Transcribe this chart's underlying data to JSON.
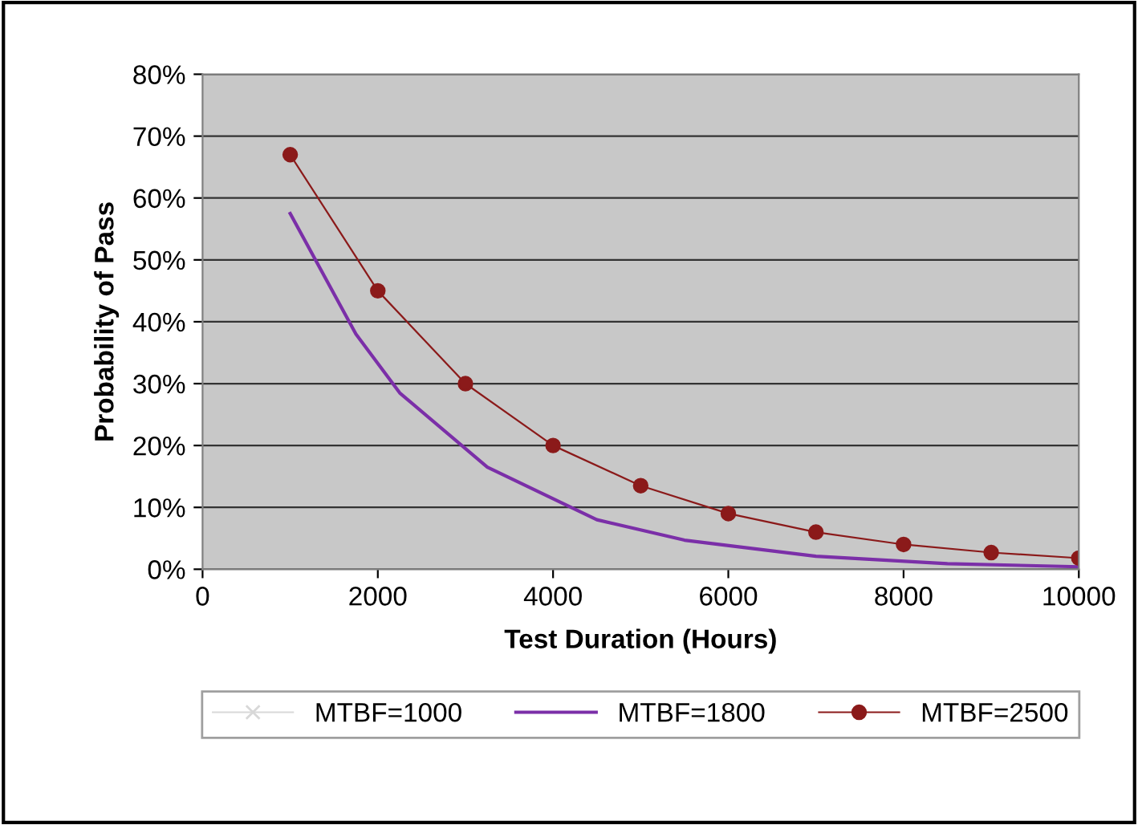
{
  "chart_data": {
    "type": "line",
    "xlabel": "Test Duration (Hours)",
    "ylabel": "Probability of Pass",
    "xlim": [
      0,
      10000
    ],
    "xticks": [
      0,
      2000,
      4000,
      6000,
      8000,
      10000
    ],
    "ylim": [
      0,
      0.8
    ],
    "yticks": [
      {
        "value": 0,
        "label": "0%"
      },
      {
        "value": 0.1,
        "label": "10%"
      },
      {
        "value": 0.2,
        "label": "20%"
      },
      {
        "value": 0.3,
        "label": "30%"
      },
      {
        "value": 0.4,
        "label": "40%"
      },
      {
        "value": 0.5,
        "label": "50%"
      },
      {
        "value": 0.6,
        "label": "60%"
      },
      {
        "value": 0.7,
        "label": "70%"
      },
      {
        "value": 0.8,
        "label": "80%"
      }
    ],
    "grid": "y",
    "legend": "bottom",
    "series": [
      {
        "name": "MTBF=1000",
        "color": "#d8d8d8",
        "marker": "cross"
      },
      {
        "name": "MTBF=1800",
        "color": "#7b2fa8",
        "marker": "none",
        "line_style": "solid",
        "x": [
          1000,
          1750,
          2250,
          3250,
          4500,
          5500,
          7000,
          8500,
          10000
        ],
        "values": [
          0.575,
          0.38,
          0.285,
          0.165,
          0.08,
          0.047,
          0.021,
          0.009,
          0.004
        ]
      },
      {
        "name": "MTBF=2500",
        "color": "#8b1a1a",
        "marker": "circle",
        "line_style": "solid",
        "x": [
          1000,
          2000,
          3000,
          4000,
          5000,
          6000,
          7000,
          8000,
          9000,
          10000
        ],
        "values": [
          0.67,
          0.45,
          0.3,
          0.2,
          0.135,
          0.09,
          0.06,
          0.04,
          0.027,
          0.018
        ]
      }
    ]
  }
}
